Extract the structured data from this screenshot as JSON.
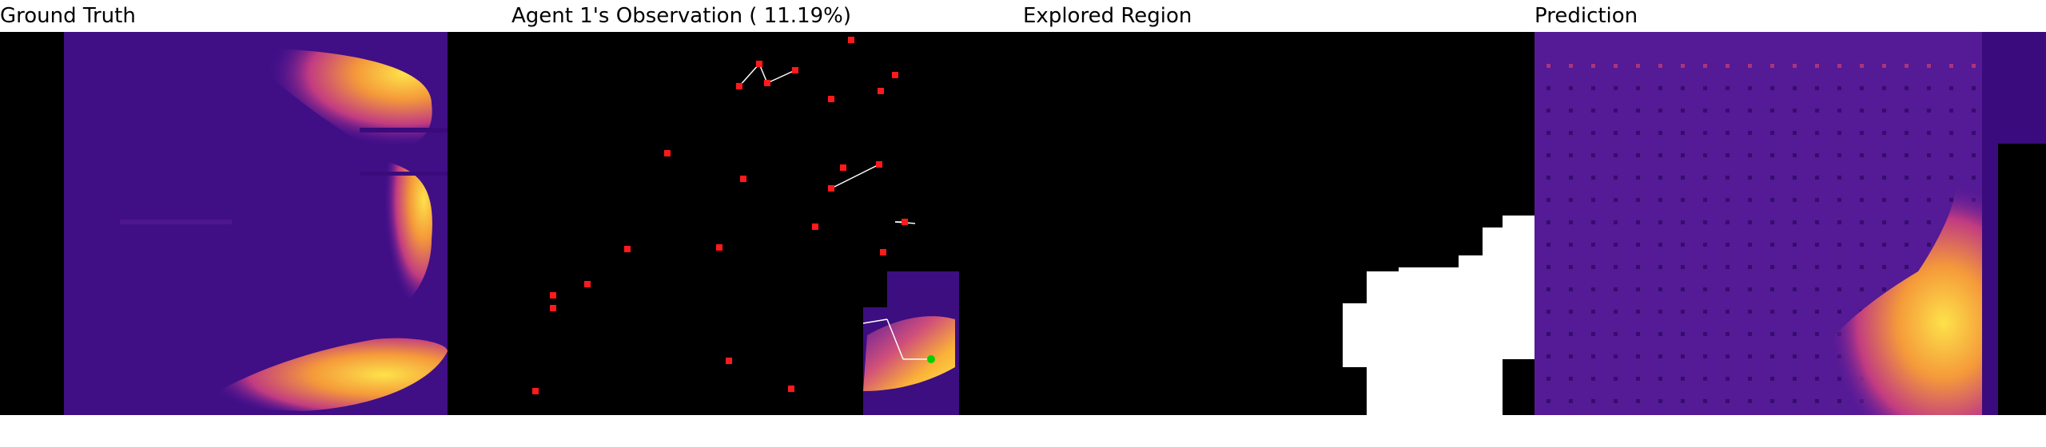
{
  "panels": [
    {
      "title": "Ground Truth"
    },
    {
      "title": "Agent 1's Observation ( 11.19%)"
    },
    {
      "title": "Explored Region"
    },
    {
      "title": "Prediction"
    }
  ],
  "colors": {
    "background": "#000000",
    "heat_low": "#3a0a7a",
    "heat_mid": "#c13b82",
    "heat_high": "#fcce3a",
    "marker": "#ff1a1a",
    "agent": "#00d000",
    "explored": "#ffffff"
  }
}
